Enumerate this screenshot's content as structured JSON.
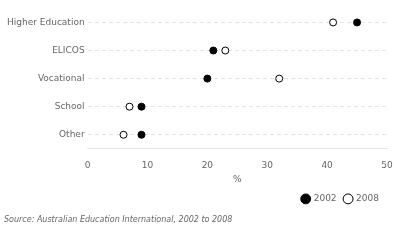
{
  "chart_data": {
    "type": "dot",
    "orientation": "horizontal",
    "categories": [
      "Higher Education",
      "ELICOS",
      "Vocational",
      "School",
      "Other"
    ],
    "series": [
      {
        "name": "2002",
        "color": "black",
        "marker": "circle",
        "values": [
          45,
          21,
          20,
          9,
          9
        ]
      },
      {
        "name": "2008",
        "color": "black",
        "marker": "open_circle",
        "values": [
          41,
          23,
          32,
          7,
          6
        ]
      }
    ],
    "xlabel": "%",
    "xlim": [
      0,
      50
    ],
    "xticks": [
      0,
      10,
      20,
      30,
      40,
      50
    ],
    "grid": true,
    "line_style": "dashed",
    "legend": "lower right",
    "annotations": [
      "Source: Australian Education International, 2002 to 2008"
    ]
  }
}
